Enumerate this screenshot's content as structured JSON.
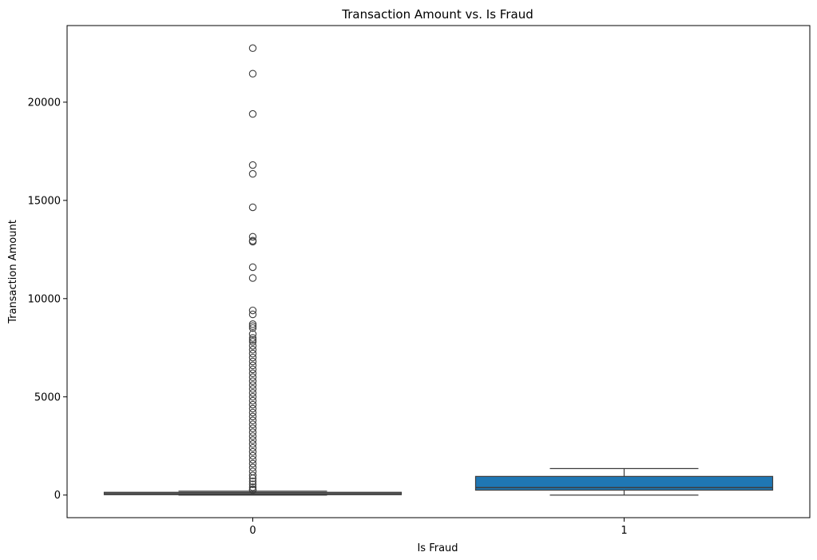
{
  "chart_data": {
    "type": "box",
    "title": "Transaction Amount vs. Is Fraud",
    "xlabel": "Is Fraud",
    "ylabel": "Transaction Amount",
    "categories": [
      "0",
      "1"
    ],
    "ylim": [
      -1150,
      23900
    ],
    "y_ticks": [
      0,
      5000,
      10000,
      15000,
      20000
    ],
    "y_tick_labels": [
      "0",
      "5000",
      "10000",
      "15000",
      "20000"
    ],
    "grid": false,
    "boxes": [
      {
        "category": "0",
        "q1": 20,
        "median": 40,
        "q3": 80,
        "whisker_low": 0,
        "whisker_high": 200,
        "fill": "#5b5b5b",
        "outliers": [
          22750,
          21450,
          19400,
          16800,
          16350,
          14650,
          13150,
          12950,
          12900,
          11600,
          11050,
          9400,
          9200,
          8700,
          8600,
          8500,
          8200,
          8000,
          7900,
          7800,
          7600,
          7400,
          7200,
          7000,
          6800,
          6600,
          6400,
          6200,
          6000,
          5800,
          5600,
          5400,
          5200,
          5000,
          4800,
          4600,
          4400,
          4200,
          4000,
          3800,
          3600,
          3400,
          3200,
          3000,
          2800,
          2600,
          2400,
          2200,
          2000,
          1800,
          1600,
          1400,
          1200,
          1000,
          850,
          700,
          550,
          400,
          300,
          250
        ]
      },
      {
        "category": "1",
        "q1": 250,
        "median": 380,
        "q3": 950,
        "whisker_low": 0,
        "whisker_high": 1350,
        "fill": "#1f77b4",
        "outliers": []
      }
    ],
    "colors": {
      "box_fill_1": "#1f77b4",
      "box_edge": "#3d3d3d",
      "axis": "#000000"
    }
  }
}
